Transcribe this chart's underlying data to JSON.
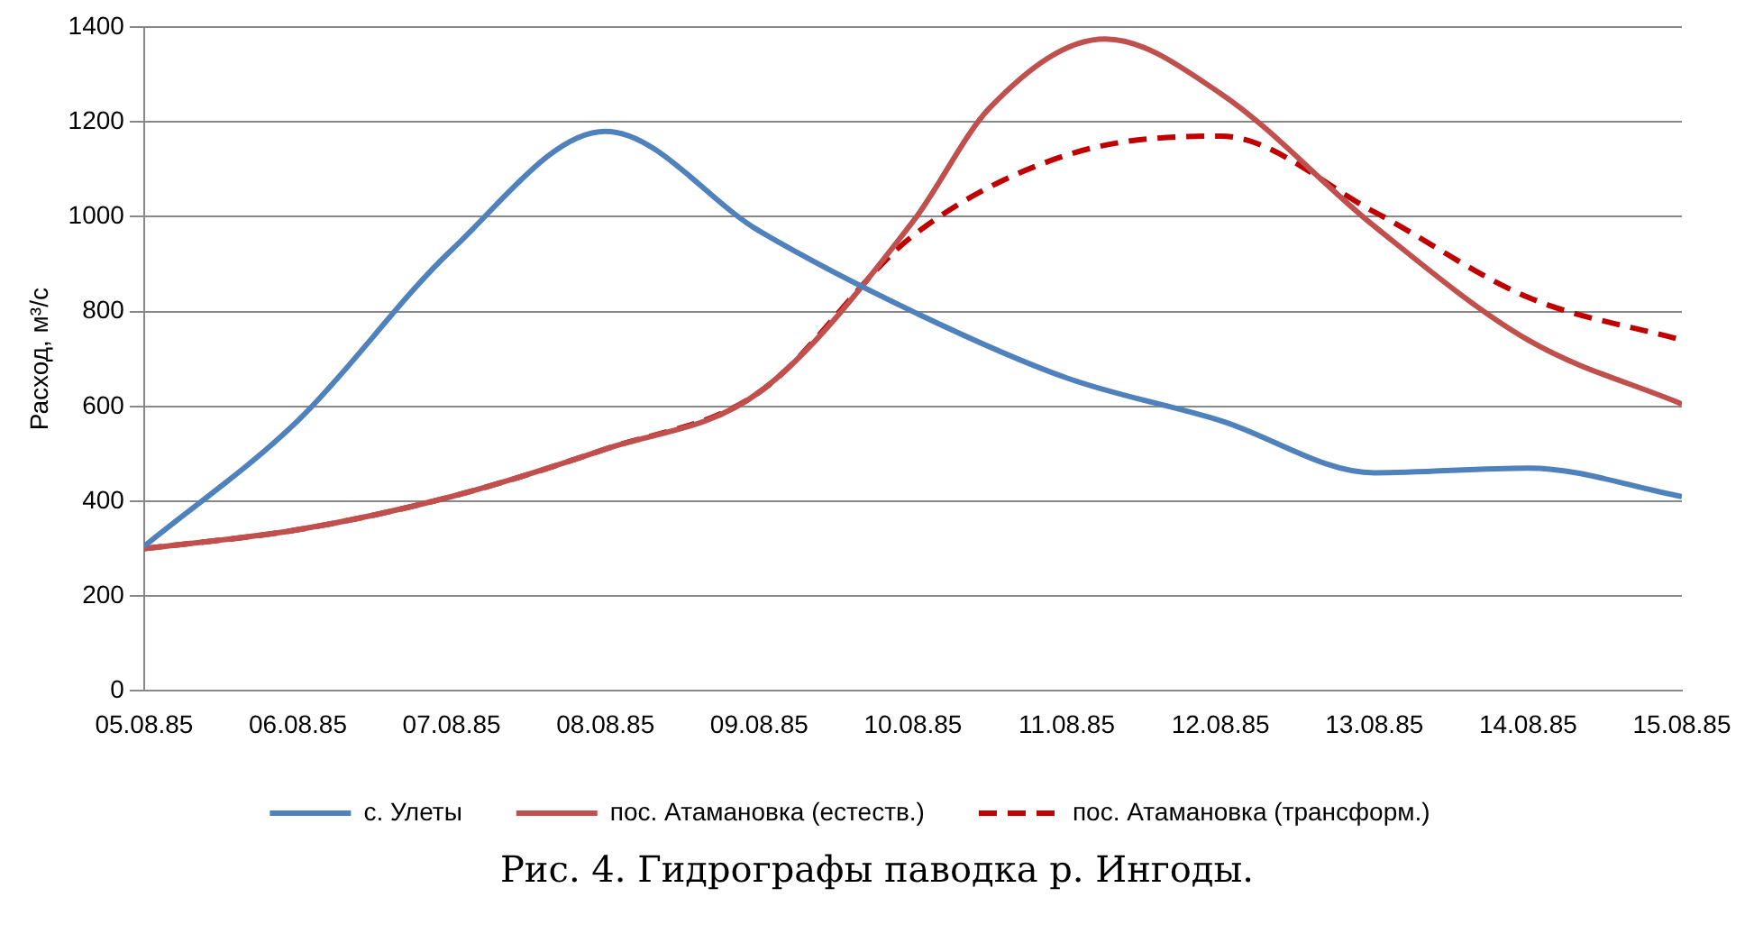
{
  "chart_data": {
    "type": "line",
    "title": "Рис. 4. Гидрографы паводка р. Ингоды.",
    "ylabel": "Расход, м³/с",
    "x": [
      "1985-08-05",
      "1985-08-06",
      "1985-08-07",
      "1985-08-08",
      "1985-08-09",
      "1985-08-10",
      "1985-08-11",
      "1985-08-12",
      "1985-08-13",
      "1985-08-14",
      "1985-08-15"
    ],
    "series": [
      {
        "name": "с. Улеты",
        "color": "#4f81bd",
        "values": [
          305,
          570,
          930,
          1180,
          970,
          800,
          660,
          570,
          460,
          470,
          410
        ]
      },
      {
        "name": "пос. Атамановка (естеств.)",
        "color": "#c0504d",
        "x": [
          "1985-08-05",
          "1985-08-06",
          "1985-08-07",
          "1985-08-08",
          "1985-08-09",
          "1985-08-10",
          "1985-08-10T12:00",
          "1985-08-11T06:00",
          "1985-08-12",
          "1985-08-13",
          "1985-08-14",
          "1985-08-15"
        ],
        "values": [
          300,
          340,
          410,
          510,
          630,
          990,
          1230,
          1375,
          1260,
          980,
          740,
          605
        ]
      },
      {
        "name": "пос. Атамановка (трансформ.)",
        "color": "#c00000",
        "line_style": "dashed",
        "values": [
          300,
          340,
          410,
          510,
          630,
          960,
          1130,
          1170,
          1010,
          830,
          740
        ]
      }
    ],
    "xlim": [
      "1985-08-05",
      "1985-08-15"
    ],
    "xticks": [
      {
        "value": "1985-08-05",
        "label": "05.08.85"
      },
      {
        "value": "1985-08-06",
        "label": "06.08.85"
      },
      {
        "value": "1985-08-07",
        "label": "07.08.85"
      },
      {
        "value": "1985-08-08",
        "label": "08.08.85"
      },
      {
        "value": "1985-08-09",
        "label": "09.08.85"
      },
      {
        "value": "1985-08-10",
        "label": "10.08.85"
      },
      {
        "value": "1985-08-11",
        "label": "11.08.85"
      },
      {
        "value": "1985-08-12",
        "label": "12.08.85"
      },
      {
        "value": "1985-08-13",
        "label": "13.08.85"
      },
      {
        "value": "1985-08-14",
        "label": "14.08.85"
      },
      {
        "value": "1985-08-15",
        "label": "15.08.85"
      }
    ],
    "ylim": [
      0,
      1400
    ],
    "yticks": [
      0,
      200,
      400,
      600,
      800,
      1000,
      1200,
      1400
    ],
    "grid": "y",
    "legend": "bottom",
    "marker": "none",
    "line_style": "solid"
  }
}
